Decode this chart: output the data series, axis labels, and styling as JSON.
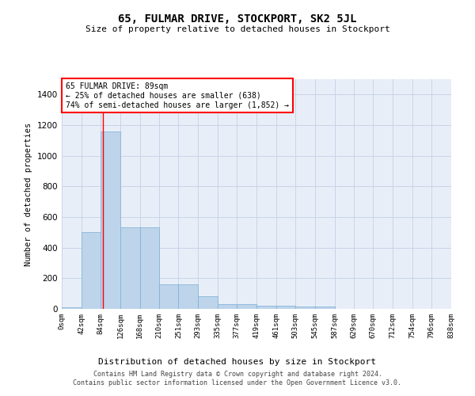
{
  "title": "65, FULMAR DRIVE, STOCKPORT, SK2 5JL",
  "subtitle": "Size of property relative to detached houses in Stockport",
  "xlabel": "Distribution of detached houses by size in Stockport",
  "ylabel": "Number of detached properties",
  "bar_color": "#bdd4eb",
  "bar_edge_color": "#7aafd4",
  "grid_color": "#c8d4e8",
  "background_color": "#e8eef8",
  "bin_edges": [
    0,
    42,
    84,
    126,
    168,
    210,
    251,
    293,
    335,
    377,
    419,
    461,
    503,
    545,
    587,
    629,
    670,
    712,
    754,
    796,
    838
  ],
  "bin_labels": [
    "0sqm",
    "42sqm",
    "84sqm",
    "126sqm",
    "168sqm",
    "210sqm",
    "251sqm",
    "293sqm",
    "335sqm",
    "377sqm",
    "419sqm",
    "461sqm",
    "503sqm",
    "545sqm",
    "587sqm",
    "629sqm",
    "670sqm",
    "712sqm",
    "754sqm",
    "796sqm",
    "838sqm"
  ],
  "bar_heights": [
    8,
    500,
    1160,
    535,
    535,
    158,
    158,
    85,
    30,
    30,
    22,
    22,
    15,
    15,
    0,
    0,
    0,
    0,
    0,
    0
  ],
  "ylim": [
    0,
    1500
  ],
  "yticks": [
    0,
    200,
    400,
    600,
    800,
    1000,
    1200,
    1400
  ],
  "red_line_x": 89,
  "annotation_title": "65 FULMAR DRIVE: 89sqm",
  "annotation_line1": "← 25% of detached houses are smaller (638)",
  "annotation_line2": "74% of semi-detached houses are larger (1,852) →",
  "footer_line1": "Contains HM Land Registry data © Crown copyright and database right 2024.",
  "footer_line2": "Contains public sector information licensed under the Open Government Licence v3.0."
}
